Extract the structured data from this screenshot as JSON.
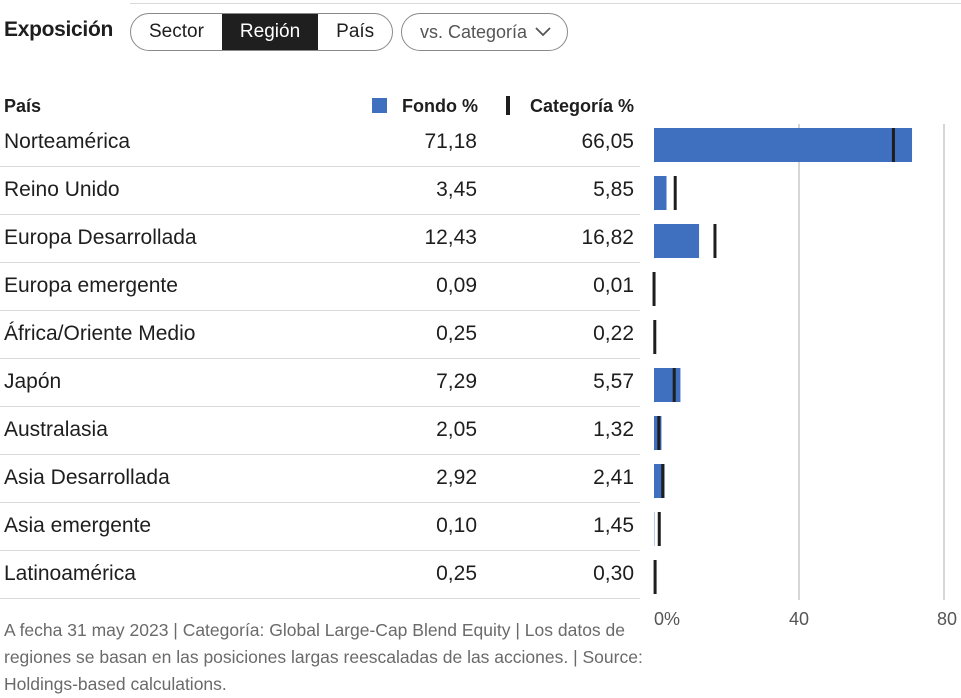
{
  "title": "Exposición",
  "tabs": [
    {
      "label": "Sector",
      "active": false
    },
    {
      "label": "Región",
      "active": true
    },
    {
      "label": "País",
      "active": false
    }
  ],
  "compare_dropdown": {
    "label": "vs. Categoría",
    "icon": "chevron-down-icon"
  },
  "colors": {
    "fund": "#3f6fbf",
    "category": "#1e1e1e",
    "grid": "#c8c8c8"
  },
  "table_headers": {
    "name": "País",
    "fund": "Fondo  %",
    "category": "Categoría  %"
  },
  "chart_data": {
    "type": "bar",
    "categories": [
      "Norteamérica",
      "Reino Unido",
      "Europa Desarrollada",
      "Europa emergente",
      "África/Oriente Medio",
      "Japón",
      "Australasia",
      "Asia Desarrollada",
      "Asia emergente",
      "Latinoamérica"
    ],
    "series": [
      {
        "name": "Fondo",
        "values": [
          71.18,
          3.45,
          12.43,
          0.09,
          0.25,
          7.29,
          2.05,
          2.92,
          0.1,
          0.25
        ],
        "display": [
          "71,18",
          "3,45",
          "12,43",
          "0,09",
          "0,25",
          "7,29",
          "2,05",
          "2,92",
          "0,10",
          "0,25"
        ]
      },
      {
        "name": "Categoría",
        "values": [
          66.05,
          5.85,
          16.82,
          0.01,
          0.22,
          5.57,
          1.32,
          2.41,
          1.45,
          0.3
        ],
        "display": [
          "66,05",
          "5,85",
          "16,82",
          "0,01",
          "0,22",
          "5,57",
          "1,32",
          "2,41",
          "1,45",
          "0,30"
        ]
      }
    ],
    "xlim": [
      0,
      80
    ],
    "ticks": [
      0,
      40,
      80
    ],
    "tick_labels": [
      "0%",
      "40",
      "80"
    ],
    "grid": true,
    "orientation": "horizontal"
  },
  "footnote": "A fecha 31 may 2023 | Categoría: Global Large-Cap Blend Equity | Los datos de regiones se basan en las posiciones largas reescaladas de las acciones. | Source: Holdings-based calculations."
}
